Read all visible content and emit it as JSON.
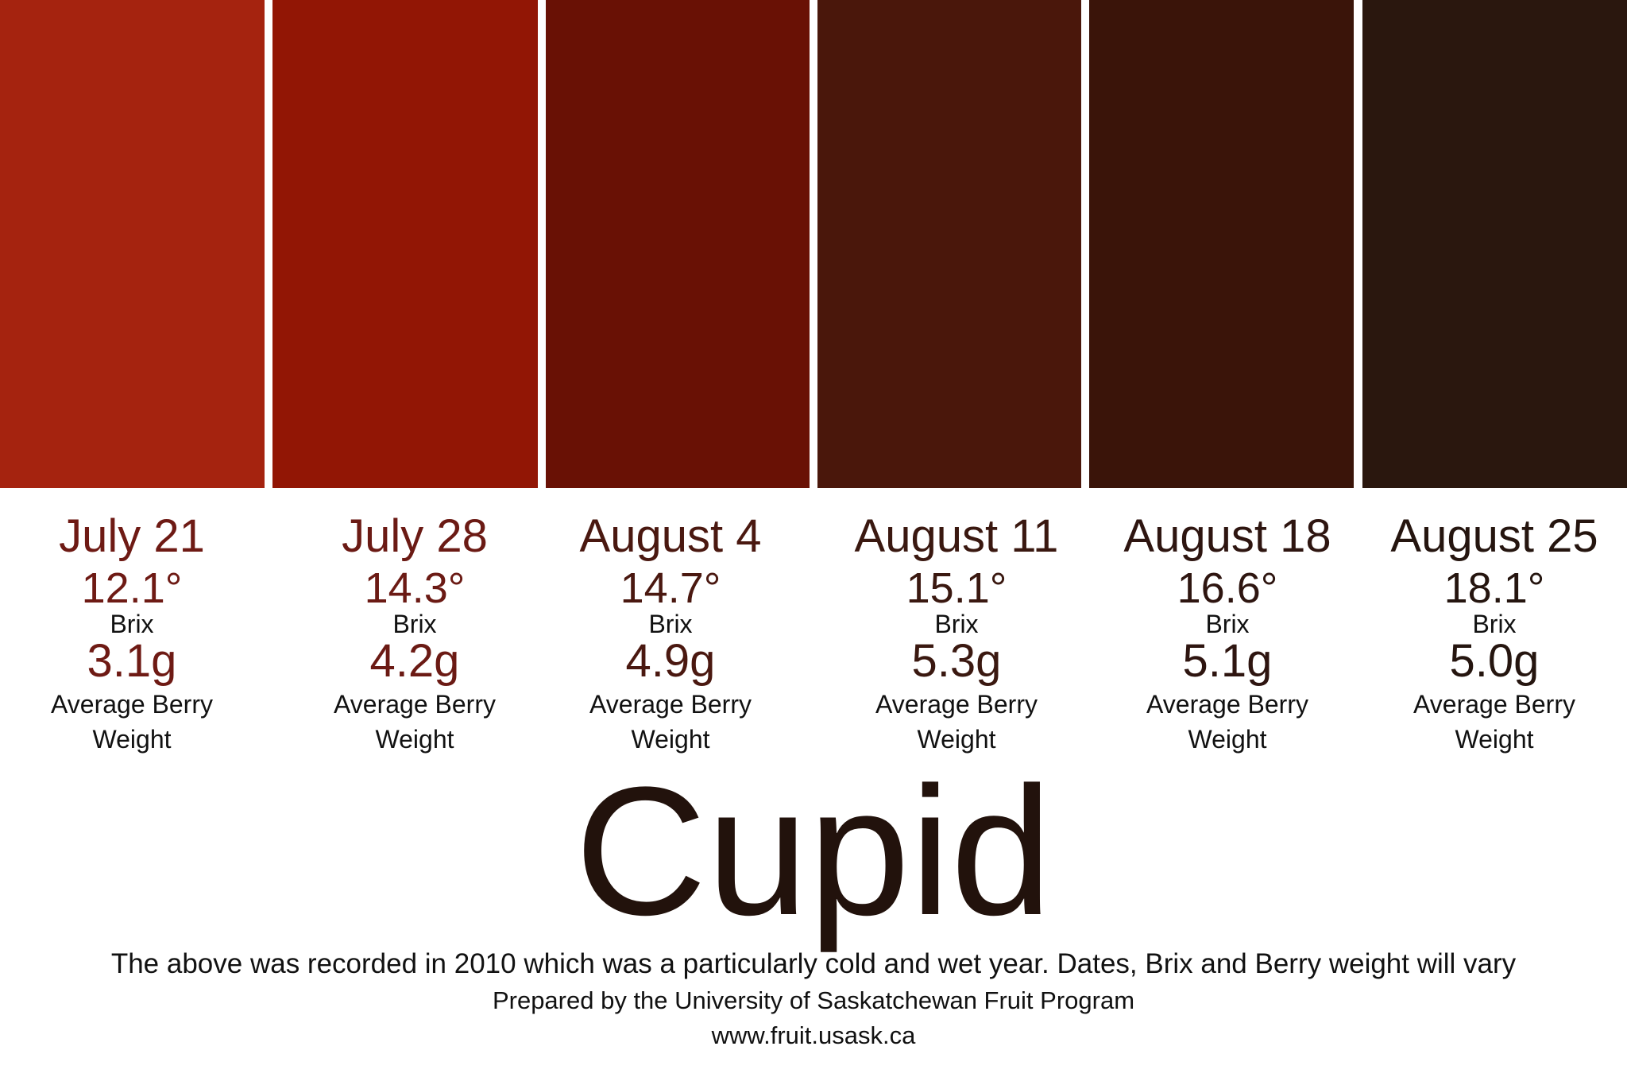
{
  "title": "Cupid",
  "samples": [
    {
      "date": "July 21",
      "brix": "12.1°",
      "brix_label": "Brix",
      "weight": "3.1g",
      "weight_label_1": "Average Berry",
      "weight_label_2": "Weight",
      "swatch_color": "#a5230f",
      "text_color": "#6e1a14"
    },
    {
      "date": "July 28",
      "brix": "14.3°",
      "brix_label": "Brix",
      "weight": "4.2g",
      "weight_label_1": "Average Berry",
      "weight_label_2": "Weight",
      "swatch_color": "#921605",
      "text_color": "#6b1a14"
    },
    {
      "date": "August 4",
      "brix": "14.7°",
      "brix_label": "Brix",
      "weight": "4.9g",
      "weight_label_1": "Average Berry",
      "weight_label_2": "Weight",
      "swatch_color": "#691105",
      "text_color": "#4a1810"
    },
    {
      "date": "August 11",
      "brix": "15.1°",
      "brix_label": "Brix",
      "weight": "5.3g",
      "weight_label_1": "Average Berry",
      "weight_label_2": "Weight",
      "swatch_color": "#4a170b",
      "text_color": "#3a1810"
    },
    {
      "date": "August 18",
      "brix": "16.6°",
      "brix_label": "Brix",
      "weight": "5.1g",
      "weight_label_1": "Average Berry",
      "weight_label_2": "Weight",
      "swatch_color": "#3a1409",
      "text_color": "#2e1510"
    },
    {
      "date": "August 25",
      "brix": "18.1°",
      "brix_label": "Brix",
      "weight": "5.0g",
      "weight_label_1": "Average Berry",
      "weight_label_2": "Weight",
      "swatch_color": "#2a170e",
      "text_color": "#25150f"
    }
  ],
  "footer": {
    "note": "The above was recorded in 2010 which was a particularly cold and wet year. Dates, Brix and Berry weight will vary",
    "prepared_by": "Prepared by the University of Saskatchewan Fruit Program",
    "website": "www.fruit.usask.ca"
  }
}
